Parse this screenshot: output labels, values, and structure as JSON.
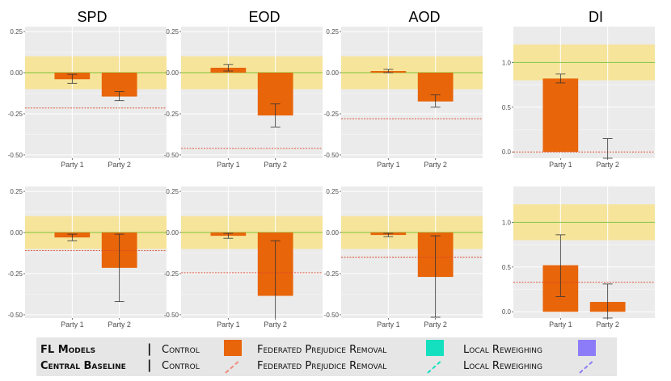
{
  "colors": {
    "panel_bg": "#EBEBEB",
    "grid": "#FFFFFF",
    "band": "#F7E49B",
    "reference_line": "#7CC43A",
    "fl_bar": "#E8650A",
    "central_dash": "#D9452B",
    "error_bar": "#333333",
    "control_swatch": "#E8650A",
    "control_dash": "#F08C7C",
    "local_swatch": "#14E0C0",
    "local_dash": "#14E0C0",
    "fedprej_swatch": "#8C7CF7",
    "fedprej_dash": "#8C7CF7"
  },
  "legend": {
    "row1": {
      "title": "FL Models",
      "sep": "|",
      "item1": "Control",
      "item2": "Federated Prejudice Removal",
      "item3": "Local Reweighing"
    },
    "row2": {
      "title": "Central Baseline",
      "sep": "|",
      "item1": "Control",
      "item2": "Federated Prejudice Removal",
      "item3": "Local Reweighing"
    }
  },
  "chart_data": [
    {
      "type": "bar",
      "row": 1,
      "col": 1,
      "title": "SPD",
      "categories": [
        "Party 1",
        "Party 2"
      ],
      "series": [
        {
          "name": "Control",
          "values": [
            -0.04,
            -0.145
          ],
          "error": [
            [
              -0.065,
              -0.01
            ],
            [
              -0.17,
              -0.115
            ]
          ]
        }
      ],
      "central_baseline": -0.215,
      "fair_band": [
        -0.1,
        0.1
      ],
      "reference": 0,
      "ylim": [
        -0.52,
        0.28
      ],
      "yticks": [
        0.25,
        0,
        -0.25,
        -0.5
      ],
      "ytick_labels": [
        "0.25",
        "0.00",
        "-0.25",
        "-0.50"
      ]
    },
    {
      "type": "bar",
      "row": 1,
      "col": 2,
      "title": "EOD",
      "categories": [
        "Party 1",
        "Party 2"
      ],
      "series": [
        {
          "name": "Control",
          "values": [
            0.03,
            -0.26
          ],
          "error": [
            [
              0.01,
              0.05
            ],
            [
              -0.33,
              -0.19
            ]
          ]
        }
      ],
      "central_baseline": -0.46,
      "fair_band": [
        -0.1,
        0.1
      ],
      "reference": 0,
      "ylim": [
        -0.52,
        0.28
      ],
      "yticks": [
        0.25,
        0,
        -0.25,
        -0.5
      ],
      "ytick_labels": [
        "0.25",
        "0.00",
        "-0.25",
        "-0.50"
      ]
    },
    {
      "type": "bar",
      "row": 1,
      "col": 3,
      "title": "AOD",
      "categories": [
        "Party 1",
        "Party 2"
      ],
      "series": [
        {
          "name": "Control",
          "values": [
            0.01,
            -0.175
          ],
          "error": [
            [
              0.0,
              0.02
            ],
            [
              -0.21,
              -0.135
            ]
          ]
        }
      ],
      "central_baseline": -0.28,
      "fair_band": [
        -0.1,
        0.1
      ],
      "reference": 0,
      "ylim": [
        -0.52,
        0.28
      ],
      "yticks": [
        0.25,
        0,
        -0.25,
        -0.5
      ],
      "ytick_labels": [
        "0.25",
        "0.00",
        "-0.25",
        "-0.50"
      ]
    },
    {
      "type": "bar",
      "row": 1,
      "col": 4,
      "title": "DI",
      "categories": [
        "Party 1",
        "Party 2"
      ],
      "series": [
        {
          "name": "Control",
          "values": [
            0.82,
            0.0
          ],
          "error": [
            [
              0.77,
              0.87
            ],
            [
              -0.07,
              0.15
            ]
          ]
        }
      ],
      "central_baseline": 0.0,
      "fair_band": [
        0.8,
        1.2
      ],
      "reference": 1,
      "ylim": [
        -0.07,
        1.4
      ],
      "yticks": [
        1.0,
        0.5,
        0.0
      ],
      "ytick_labels": [
        "1.0",
        "0.5",
        "0.0"
      ]
    },
    {
      "type": "bar",
      "row": 2,
      "col": 1,
      "title": "",
      "categories": [
        "Party 1",
        "Party 2"
      ],
      "series": [
        {
          "name": "Control",
          "values": [
            -0.03,
            -0.215
          ],
          "error": [
            [
              -0.05,
              -0.01
            ],
            [
              -0.42,
              -0.01
            ]
          ]
        }
      ],
      "central_baseline": -0.11,
      "fair_band": [
        -0.1,
        0.1
      ],
      "reference": 0,
      "ylim": [
        -0.52,
        0.28
      ],
      "yticks": [
        0.25,
        0,
        -0.25,
        -0.5
      ],
      "ytick_labels": [
        "0.25",
        "0.00",
        "-0.25",
        "-0.50"
      ]
    },
    {
      "type": "bar",
      "row": 2,
      "col": 2,
      "title": "",
      "categories": [
        "Party 1",
        "Party 2"
      ],
      "series": [
        {
          "name": "Control",
          "values": [
            -0.02,
            -0.385
          ],
          "error": [
            [
              -0.035,
              -0.005
            ],
            [
              -0.55,
              -0.05
            ]
          ]
        }
      ],
      "central_baseline": -0.245,
      "fair_band": [
        -0.1,
        0.1
      ],
      "reference": 0,
      "ylim": [
        -0.52,
        0.28
      ],
      "yticks": [
        0.25,
        0,
        -0.25,
        -0.5
      ],
      "ytick_labels": [
        "0.25",
        "0.00",
        "-0.25",
        "-0.50"
      ]
    },
    {
      "type": "bar",
      "row": 2,
      "col": 3,
      "title": "",
      "categories": [
        "Party 1",
        "Party 2"
      ],
      "series": [
        {
          "name": "Control",
          "values": [
            -0.015,
            -0.27
          ],
          "error": [
            [
              -0.025,
              -0.005
            ],
            [
              -0.515,
              -0.02
            ]
          ]
        }
      ],
      "central_baseline": -0.15,
      "fair_band": [
        -0.1,
        0.1
      ],
      "reference": 0,
      "ylim": [
        -0.52,
        0.28
      ],
      "yticks": [
        0.25,
        0,
        -0.25,
        -0.5
      ],
      "ytick_labels": [
        "0.25",
        "0.00",
        "-0.25",
        "-0.50"
      ]
    },
    {
      "type": "bar",
      "row": 2,
      "col": 4,
      "title": "",
      "categories": [
        "Party 1",
        "Party 2"
      ],
      "series": [
        {
          "name": "Control",
          "values": [
            0.52,
            0.11
          ],
          "error": [
            [
              0.17,
              0.86
            ],
            [
              -0.07,
              0.31
            ]
          ]
        }
      ],
      "central_baseline": 0.33,
      "fair_band": [
        0.8,
        1.2
      ],
      "reference": 1,
      "ylim": [
        -0.07,
        1.4
      ],
      "yticks": [
        1.0,
        0.5,
        0.0
      ],
      "ytick_labels": [
        "1.0",
        "0.5",
        "0.0"
      ]
    }
  ]
}
